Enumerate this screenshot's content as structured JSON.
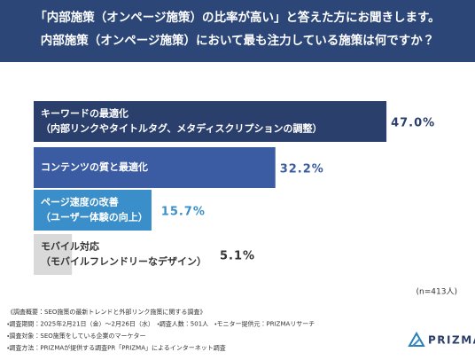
{
  "chart_data": {
    "type": "barh",
    "title_lines": [
      "「内部施策（オンページ施策）の比率が高い」と答えた方にお聞きします。",
      "内部施策（オンページ施策）において最も注力している施策は何ですか？"
    ],
    "categories": [
      [
        "キーワードの最適化",
        "（内部リンクやタイトルタグ、メタディスクリプションの調整）"
      ],
      [
        "コンテンツの質と最適化"
      ],
      [
        "ページ速度の改善",
        "（ユーザー体験の向上）"
      ],
      [
        "モバイル対応",
        "（モバイルフレンドリーなデザイン）"
      ]
    ],
    "values": [
      47.0,
      32.2,
      15.7,
      5.1
    ],
    "value_labels": [
      "47.0%",
      "32.2%",
      "15.7%",
      "5.1%"
    ],
    "colors": [
      "#2b3f6c",
      "#3b5ca3",
      "#3a8fca",
      "#d9d9d9"
    ],
    "text_colors": [
      "#ffffff",
      "#ffffff",
      "#ffffff",
      "#333333"
    ],
    "value_colors": [
      "#2b3f6c",
      "#3b5ca3",
      "#3a8fca",
      "#333333"
    ],
    "xlim": [
      0,
      50
    ],
    "note": "(n=413人)",
    "footer": [
      "《調査概要：SEO施策の最新トレンドと外部リンク施策に関する調査》",
      "・調査期間：2025年2月21日（金）〜2月26日（水）　・調査人数：501人　・モニター提供元：PRIZMAリサーチ",
      "・調査対象：SEO施策をしている企業のマーケター",
      "・調査方法：PRIZMAが提供する調査PR「PRIZMA」によるインターネット調査"
    ],
    "brand": "PRIZMA"
  }
}
